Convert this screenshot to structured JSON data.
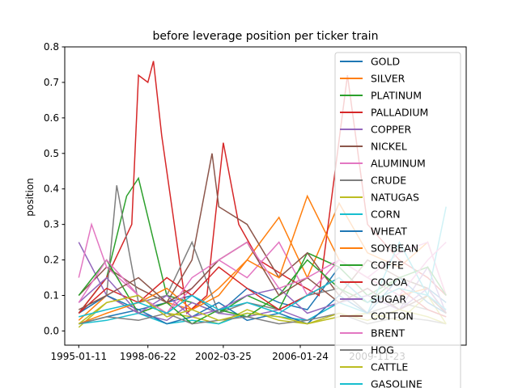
{
  "chart_data": {
    "type": "line",
    "title": "before leverage position per ticker train",
    "xlabel": "",
    "ylabel": "position",
    "x_tick_labels": [
      "1995-01-11",
      "1998-06-22",
      "2002-03-25",
      "2006-01-24",
      "2009-11-23"
    ],
    "y_ticks": [
      0.0,
      0.1,
      0.2,
      0.3,
      0.4,
      0.5,
      0.6,
      0.7,
      0.8
    ],
    "y_tick_labels": [
      "0.0",
      "0.1",
      "0.2",
      "0.3",
      "0.4",
      "0.5",
      "0.6",
      "0.7",
      "0.8"
    ],
    "ylim": [
      -0.04,
      0.8
    ],
    "xlim": [
      "1994-05-01",
      "2014-05-01"
    ],
    "grid": false,
    "legend_placement": "upper-right",
    "series": [
      {
        "name": "GOLD",
        "color": "#1f77b4",
        "x": [
          "1995-01-11",
          "1996-06-01",
          "1998-01-01",
          "1999-06-01",
          "2000-09-01",
          "2002-01-01",
          "2003-06-01",
          "2005-01-01",
          "2006-06-01",
          "2008-01-01",
          "2009-06-01",
          "2011-01-01",
          "2012-06-01",
          "2013-05-01"
        ],
        "values": [
          0.02,
          0.04,
          0.06,
          0.08,
          0.1,
          0.05,
          0.12,
          0.08,
          0.06,
          0.18,
          0.1,
          0.15,
          0.12,
          0.08
        ]
      },
      {
        "name": "SILVER",
        "color": "#ff7f0e",
        "x": [
          "1995-01-11",
          "1996-06-01",
          "1998-01-01",
          "1999-06-01",
          "2000-09-01",
          "2002-01-01",
          "2003-06-01",
          "2005-01-01",
          "2006-06-01",
          "2008-01-01",
          "2009-06-01",
          "2011-01-01",
          "2012-06-01",
          "2013-05-01"
        ],
        "values": [
          0.03,
          0.1,
          0.05,
          0.08,
          0.06,
          0.12,
          0.2,
          0.32,
          0.15,
          0.36,
          0.22,
          0.18,
          0.25,
          0.1
        ]
      },
      {
        "name": "PLATINUM",
        "color": "#2ca02c",
        "x": [
          "1995-01-11",
          "1996-06-01",
          "1997-06-01",
          "1998-01-01",
          "1999-06-01",
          "2000-09-01",
          "2002-01-01",
          "2003-06-01",
          "2005-01-01",
          "2006-06-01",
          "2008-01-01",
          "2009-06-01",
          "2011-01-01",
          "2012-06-01",
          "2013-05-01"
        ],
        "values": [
          0.05,
          0.15,
          0.38,
          0.43,
          0.1,
          0.08,
          0.05,
          0.1,
          0.06,
          0.22,
          0.18,
          0.1,
          0.15,
          0.12,
          0.05
        ]
      },
      {
        "name": "PALLADIUM",
        "color": "#d62728",
        "x": [
          "1995-01-11",
          "1996-06-01",
          "1997-09-01",
          "1998-01-01",
          "1998-06-22",
          "1998-10-01",
          "1999-03-01",
          "1999-09-01",
          "2000-06-01",
          "2001-06-01",
          "2002-03-25",
          "2003-01-01",
          "2004-01-01",
          "2005-06-01",
          "2007-01-01",
          "2008-06-01",
          "2009-06-01",
          "2011-01-01",
          "2012-06-01",
          "2013-05-01"
        ],
        "values": [
          0.05,
          0.15,
          0.3,
          0.72,
          0.7,
          0.76,
          0.55,
          0.35,
          0.05,
          0.1,
          0.53,
          0.3,
          0.2,
          0.15,
          0.1,
          0.72,
          0.3,
          0.2,
          0.15,
          0.1
        ]
      },
      {
        "name": "COPPER",
        "color": "#9467bd",
        "x": [
          "1995-01-11",
          "1996-06-01",
          "1998-01-01",
          "1999-06-01",
          "2000-09-01",
          "2002-01-01",
          "2003-06-01",
          "2005-01-01",
          "2006-06-01",
          "2008-01-01",
          "2009-06-01",
          "2011-01-01",
          "2012-06-01",
          "2013-05-01"
        ],
        "values": [
          0.25,
          0.1,
          0.05,
          0.03,
          0.08,
          0.05,
          0.04,
          0.06,
          0.03,
          0.08,
          0.12,
          0.06,
          0.18,
          0.05
        ]
      },
      {
        "name": "NICKEL",
        "color": "#8c564b",
        "x": [
          "1995-01-11",
          "1996-06-01",
          "1998-01-01",
          "1999-06-01",
          "2000-09-01",
          "2001-09-01",
          "2002-01-01",
          "2003-06-01",
          "2005-01-01",
          "2006-06-01",
          "2008-01-01",
          "2009-06-01",
          "2011-01-01",
          "2012-06-01",
          "2013-05-01"
        ],
        "values": [
          0.1,
          0.18,
          0.12,
          0.08,
          0.2,
          0.5,
          0.35,
          0.3,
          0.15,
          0.22,
          0.1,
          0.2,
          0.15,
          0.12,
          0.05
        ]
      },
      {
        "name": "ALUMINUM",
        "color": "#e377c2",
        "x": [
          "1995-01-11",
          "1995-09-01",
          "1996-06-01",
          "1998-01-01",
          "1999-06-01",
          "2000-09-01",
          "2002-01-01",
          "2003-06-01",
          "2005-01-01",
          "2006-06-01",
          "2008-01-01",
          "2009-06-01",
          "2011-01-01",
          "2012-06-01",
          "2013-05-01"
        ],
        "values": [
          0.15,
          0.3,
          0.18,
          0.1,
          0.05,
          0.12,
          0.2,
          0.15,
          0.25,
          0.1,
          0.2,
          0.15,
          0.22,
          0.25,
          0.1
        ]
      },
      {
        "name": "CRUDE",
        "color": "#7f7f7f",
        "x": [
          "1995-01-11",
          "1996-06-01",
          "1996-12-01",
          "1998-01-01",
          "1999-06-01",
          "2000-09-01",
          "2002-01-01",
          "2003-06-01",
          "2005-01-01",
          "2006-06-01",
          "2008-01-01",
          "2009-06-01",
          "2011-01-01",
          "2012-06-01",
          "2013-05-01"
        ],
        "values": [
          0.05,
          0.1,
          0.41,
          0.08,
          0.1,
          0.25,
          0.05,
          0.08,
          0.06,
          0.1,
          0.12,
          0.05,
          0.08,
          0.06,
          0.04
        ]
      },
      {
        "name": "NATUGAS",
        "color": "#bcbd22",
        "x": [
          "1995-01-11",
          "1996-06-01",
          "1998-01-01",
          "1999-06-01",
          "2000-09-01",
          "2002-01-01",
          "2003-06-01",
          "2005-01-01",
          "2006-06-01",
          "2008-01-01",
          "2009-06-01",
          "2011-01-01",
          "2012-06-01",
          "2013-05-01"
        ],
        "values": [
          0.01,
          0.08,
          0.1,
          0.05,
          0.04,
          0.02,
          0.06,
          0.03,
          0.02,
          0.04,
          0.05,
          0.03,
          0.1,
          0.02
        ]
      },
      {
        "name": "CORN",
        "color": "#17becf",
        "x": [
          "1995-01-11",
          "1996-06-01",
          "1998-01-01",
          "1999-06-01",
          "2000-09-01",
          "2002-01-01",
          "2003-06-01",
          "2005-01-01",
          "2006-06-01",
          "2008-01-01",
          "2009-06-01",
          "2011-01-01",
          "2012-06-01",
          "2013-05-01"
        ],
        "values": [
          0.02,
          0.03,
          0.05,
          0.02,
          0.03,
          0.02,
          0.05,
          0.04,
          0.03,
          0.08,
          0.05,
          0.25,
          0.1,
          0.35
        ]
      },
      {
        "name": "WHEAT",
        "color": "#1f77b4",
        "x": [
          "1995-01-11",
          "1996-06-01",
          "1998-01-01",
          "1999-06-01",
          "2000-09-01",
          "2002-01-01",
          "2003-06-01",
          "2005-01-01",
          "2006-06-01",
          "2008-01-01",
          "2009-06-01",
          "2011-01-01",
          "2012-06-01",
          "2013-05-01"
        ],
        "values": [
          0.05,
          0.1,
          0.06,
          0.02,
          0.04,
          0.08,
          0.03,
          0.05,
          0.02,
          0.1,
          0.05,
          0.15,
          0.08,
          0.05
        ]
      },
      {
        "name": "SOYBEAN",
        "color": "#ff7f0e",
        "x": [
          "1995-01-11",
          "1996-06-01",
          "1998-01-01",
          "1999-06-01",
          "2000-09-01",
          "2002-01-01",
          "2003-06-01",
          "2005-01-01",
          "2006-06-01",
          "2008-01-01",
          "2009-06-01",
          "2011-01-01",
          "2012-06-01",
          "2013-05-01"
        ],
        "values": [
          0.02,
          0.05,
          0.08,
          0.12,
          0.06,
          0.1,
          0.2,
          0.15,
          0.38,
          0.2,
          0.15,
          0.1,
          0.12,
          0.05
        ]
      },
      {
        "name": "COFFE",
        "color": "#2ca02c",
        "x": [
          "1995-01-11",
          "1996-06-01",
          "1998-01-01",
          "1999-06-01",
          "2000-09-01",
          "2002-01-01",
          "2003-06-01",
          "2005-01-01",
          "2006-06-01",
          "2008-01-01",
          "2009-06-01",
          "2011-01-01",
          "2012-06-01",
          "2013-05-01"
        ],
        "values": [
          0.1,
          0.2,
          0.05,
          0.08,
          0.02,
          0.06,
          0.04,
          0.1,
          0.2,
          0.12,
          0.08,
          0.15,
          0.18,
          0.1
        ]
      },
      {
        "name": "COCOA",
        "color": "#d62728",
        "x": [
          "1995-01-11",
          "1996-06-01",
          "1998-01-01",
          "1999-06-01",
          "2000-09-01",
          "2002-01-01",
          "2003-06-01",
          "2005-01-01",
          "2006-06-01",
          "2008-01-01",
          "2009-06-01",
          "2011-01-01",
          "2012-06-01",
          "2013-05-01"
        ],
        "values": [
          0.05,
          0.12,
          0.08,
          0.15,
          0.1,
          0.18,
          0.12,
          0.06,
          0.1,
          0.15,
          0.08,
          0.12,
          0.06,
          0.04
        ]
      },
      {
        "name": "SUGAR",
        "color": "#9467bd",
        "x": [
          "1995-01-11",
          "1996-06-01",
          "1998-01-01",
          "1999-06-01",
          "2000-09-01",
          "2002-01-01",
          "2003-06-01",
          "2005-01-01",
          "2006-06-01",
          "2008-01-01",
          "2009-06-01",
          "2011-01-01",
          "2012-06-01",
          "2013-05-01"
        ],
        "values": [
          0.08,
          0.15,
          0.05,
          0.1,
          0.04,
          0.06,
          0.1,
          0.12,
          0.05,
          0.08,
          0.1,
          0.06,
          0.12,
          0.05
        ]
      },
      {
        "name": "COTTON",
        "color": "#8c564b",
        "x": [
          "1995-01-11",
          "1996-06-01",
          "1998-01-01",
          "1999-06-01",
          "2000-09-01",
          "2002-01-01",
          "2003-06-01",
          "2005-01-01",
          "2006-06-01",
          "2008-01-01",
          "2009-06-01",
          "2011-01-01",
          "2012-06-01",
          "2013-05-01"
        ],
        "values": [
          0.06,
          0.1,
          0.15,
          0.08,
          0.12,
          0.2,
          0.25,
          0.1,
          0.15,
          0.08,
          0.12,
          0.06,
          0.1,
          0.05
        ]
      },
      {
        "name": "BRENT",
        "color": "#e377c2",
        "x": [
          "1995-01-11",
          "1996-06-01",
          "1998-01-01",
          "1999-06-01",
          "2000-09-01",
          "2002-01-01",
          "2003-06-01",
          "2005-01-01",
          "2006-06-01",
          "2008-01-01",
          "2009-06-01",
          "2011-01-01",
          "2012-06-01",
          "2013-05-01"
        ],
        "values": [
          0.08,
          0.2,
          0.1,
          0.05,
          0.15,
          0.2,
          0.25,
          0.12,
          0.15,
          0.2,
          0.15,
          0.1,
          0.2,
          0.25
        ]
      },
      {
        "name": "HOG",
        "color": "#7f7f7f",
        "x": [
          "1995-01-11",
          "1996-06-01",
          "1998-01-01",
          "1999-06-01",
          "2000-09-01",
          "2002-01-01",
          "2003-06-01",
          "2005-01-01",
          "2006-06-01",
          "2008-01-01",
          "2009-06-01",
          "2011-01-01",
          "2012-06-01",
          "2013-05-01"
        ],
        "values": [
          0.02,
          0.04,
          0.03,
          0.05,
          0.02,
          0.03,
          0.04,
          0.02,
          0.03,
          0.05,
          0.02,
          0.04,
          0.03,
          0.02
        ]
      },
      {
        "name": "CATTLE",
        "color": "#bcbd22",
        "x": [
          "1995-01-11",
          "1996-06-01",
          "1998-01-01",
          "1999-06-01",
          "2000-09-01",
          "2002-01-01",
          "2003-06-01",
          "2005-01-01",
          "2006-06-01",
          "2008-01-01",
          "2009-06-01",
          "2011-01-01",
          "2012-06-01",
          "2013-05-01"
        ],
        "values": [
          0.02,
          0.08,
          0.1,
          0.04,
          0.06,
          0.03,
          0.05,
          0.04,
          0.02,
          0.05,
          0.03,
          0.06,
          0.04,
          0.02
        ]
      },
      {
        "name": "GASOLINE",
        "color": "#17becf",
        "x": [
          "1995-01-11",
          "1996-06-01",
          "1998-01-01",
          "1999-06-01",
          "2000-09-01",
          "2002-01-01",
          "2003-06-01",
          "2005-01-01",
          "2006-06-01",
          "2008-01-01",
          "2009-06-01",
          "2011-01-01",
          "2012-06-01",
          "2013-05-01"
        ],
        "values": [
          0.04,
          0.06,
          0.08,
          0.05,
          0.1,
          0.06,
          0.08,
          0.05,
          0.1,
          0.15,
          0.08,
          0.12,
          0.1,
          0.06
        ]
      }
    ]
  }
}
